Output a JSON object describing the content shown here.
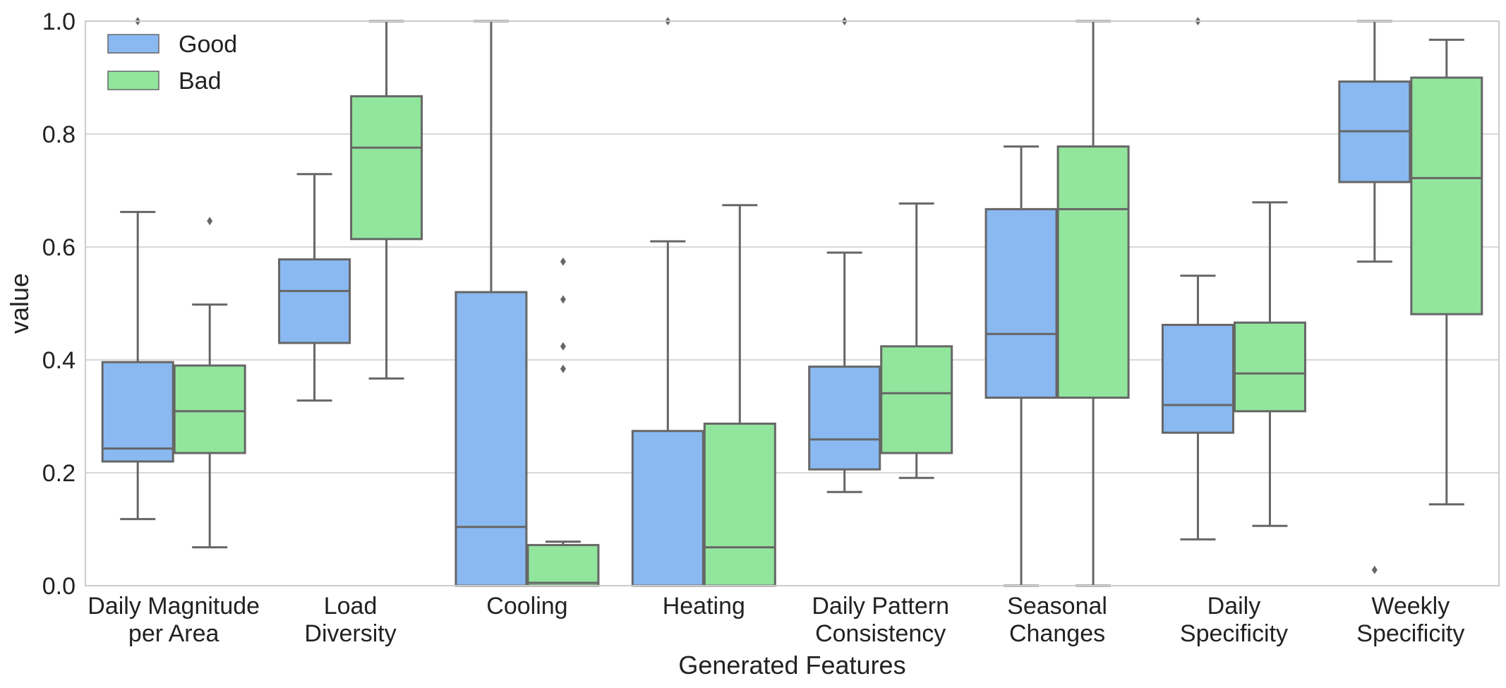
{
  "chart_data": {
    "type": "box",
    "title": "",
    "xlabel": "Generated Features",
    "ylabel": "value",
    "ylim": [
      0.0,
      1.0
    ],
    "yticks": [
      "0.0",
      "0.2",
      "0.4",
      "0.6",
      "0.8",
      "1.0"
    ],
    "grid": "horizontal",
    "legend": {
      "position": "top-left",
      "entries": [
        "Good",
        "Bad"
      ]
    },
    "colors": {
      "Good": "#8ab9f1",
      "Bad": "#92e59d",
      "line": "#666666",
      "grid": "#cccccc"
    },
    "categories": [
      [
        "Daily Magnitude",
        "per Area"
      ],
      [
        "Load",
        "Diversity"
      ],
      [
        "Cooling"
      ],
      [
        "Heating"
      ],
      [
        "Daily Pattern",
        "Consistency"
      ],
      [
        "Seasonal",
        "Changes"
      ],
      [
        "Daily",
        "Specificity"
      ],
      [
        "Weekly",
        "Specificity"
      ]
    ],
    "series": [
      {
        "name": "Good",
        "boxes": [
          {
            "whislo": 0.118,
            "q1": 0.22,
            "med": 0.243,
            "q3": 0.396,
            "whishi": 0.662,
            "fliers": [
              1.0
            ]
          },
          {
            "whislo": 0.328,
            "q1": 0.43,
            "med": 0.522,
            "q3": 0.578,
            "whishi": 0.729,
            "fliers": []
          },
          {
            "whislo": 0.0,
            "q1": 0.0,
            "med": 0.104,
            "q3": 0.52,
            "whishi": 1.0,
            "fliers": []
          },
          {
            "whislo": 0.0,
            "q1": 0.0,
            "med": 0.0,
            "q3": 0.274,
            "whishi": 0.61,
            "fliers": [
              1.0
            ]
          },
          {
            "whislo": 0.166,
            "q1": 0.206,
            "med": 0.259,
            "q3": 0.388,
            "whishi": 0.59,
            "fliers": [
              1.0
            ]
          },
          {
            "whislo": 0.0,
            "q1": 0.333,
            "med": 0.446,
            "q3": 0.667,
            "whishi": 0.778,
            "fliers": []
          },
          {
            "whislo": 0.082,
            "q1": 0.271,
            "med": 0.32,
            "q3": 0.462,
            "whishi": 0.549,
            "fliers": [
              1.0
            ]
          },
          {
            "whislo": 0.574,
            "q1": 0.715,
            "med": 0.805,
            "q3": 0.893,
            "whishi": 1.0,
            "fliers": [
              0.028
            ]
          }
        ]
      },
      {
        "name": "Bad",
        "boxes": [
          {
            "whislo": 0.068,
            "q1": 0.235,
            "med": 0.309,
            "q3": 0.39,
            "whishi": 0.498,
            "fliers": [
              0.646
            ]
          },
          {
            "whislo": 0.367,
            "q1": 0.614,
            "med": 0.776,
            "q3": 0.867,
            "whishi": 1.0,
            "fliers": []
          },
          {
            "whislo": 0.0,
            "q1": 0.0,
            "med": 0.005,
            "q3": 0.072,
            "whishi": 0.078,
            "fliers": [
              0.384,
              0.424,
              0.507,
              0.574
            ]
          },
          {
            "whislo": 0.0,
            "q1": 0.0,
            "med": 0.068,
            "q3": 0.287,
            "whishi": 0.674,
            "fliers": []
          },
          {
            "whislo": 0.191,
            "q1": 0.235,
            "med": 0.341,
            "q3": 0.424,
            "whishi": 0.677,
            "fliers": []
          },
          {
            "whislo": 0.0,
            "q1": 0.333,
            "med": 0.667,
            "q3": 0.778,
            "whishi": 1.0,
            "fliers": []
          },
          {
            "whislo": 0.106,
            "q1": 0.309,
            "med": 0.376,
            "q3": 0.466,
            "whishi": 0.679,
            "fliers": []
          },
          {
            "whislo": 0.144,
            "q1": 0.481,
            "med": 0.722,
            "q3": 0.9,
            "whishi": 0.967,
            "fliers": []
          }
        ]
      }
    ]
  }
}
